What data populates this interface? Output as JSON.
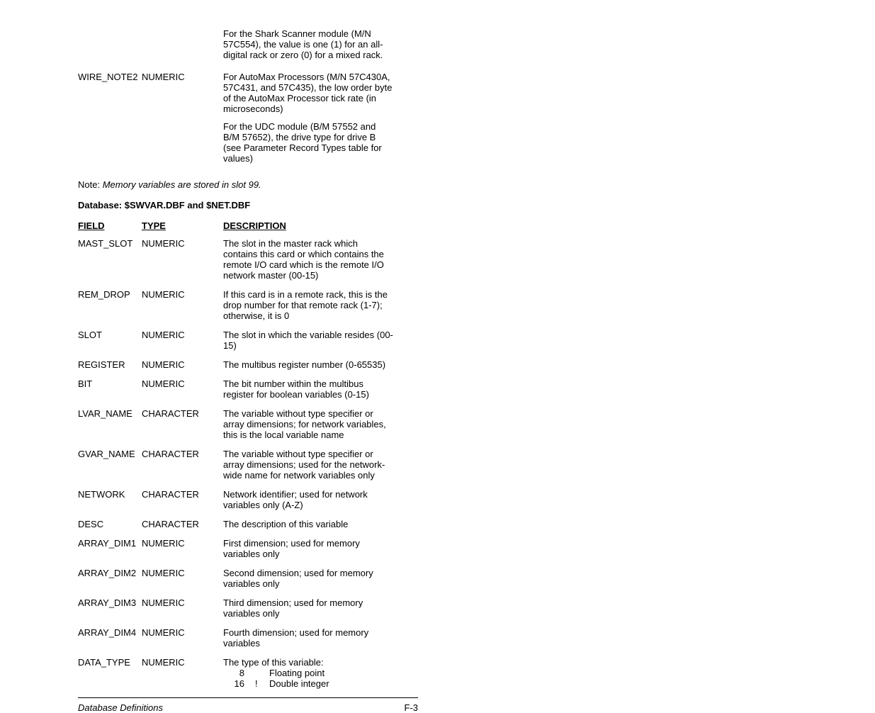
{
  "top": {
    "shark_note": "For the Shark Scanner module (M/N 57C554), the value is one (1) for an all-digital rack or zero (0) for a mixed rack.",
    "wire_note2_field": "WIRE_NOTE2",
    "wire_note2_type": "NUMERIC",
    "wire_note2_desc1": "For AutoMax Processors (M/N 57C430A, 57C431, and 57C435), the low order byte of the AutoMax Processor tick rate (in microseconds)",
    "wire_note2_desc2": "For the UDC module (B/M 57552 and B/M 57652), the drive type for drive B (see Parameter Record Types table for values)",
    "note_prefix": "Note: ",
    "note_text": "Memory variables are stored in slot 99."
  },
  "db_heading": "Database: $SWVAR.DBF and $NET.DBF",
  "headers": {
    "field": "FIELD",
    "type": "TYPE",
    "desc": "DESCRIPTION"
  },
  "rows": [
    {
      "field": "MAST_SLOT",
      "type": "NUMERIC",
      "desc": "The slot in the master rack which contains this card or which contains the remote I/O card which is the remote I/O network master (00-15)"
    },
    {
      "field": "REM_DROP",
      "type": "NUMERIC",
      "desc": "If this card is in a remote rack, this is the drop number for that remote rack (1-7); otherwise, it is 0"
    },
    {
      "field": "SLOT",
      "type": "NUMERIC",
      "desc": "The slot in which the variable resides (00-15)"
    },
    {
      "field": "REGISTER",
      "type": "NUMERIC",
      "desc": "The multibus register number (0-65535)"
    },
    {
      "field": "BIT",
      "type": "NUMERIC",
      "desc": "The bit number within the multibus register for boolean variables (0-15)"
    },
    {
      "field": "LVAR_NAME",
      "type": "CHARACTER",
      "desc": "The variable without type specifier or array dimensions; for network variables, this is the local variable name"
    },
    {
      "field": "GVAR_NAME",
      "type": "CHARACTER",
      "desc": "The variable without type specifier or array dimensions; used for the network-wide name for network variables only"
    },
    {
      "field": "NETWORK",
      "type": "CHARACTER",
      "desc": "Network identifier; used for network variables only (A-Z)"
    },
    {
      "field": "DESC",
      "type": "CHARACTER",
      "desc": "The description of this variable"
    },
    {
      "field": "ARRAY_DIM1",
      "type": "NUMERIC",
      "desc": "First dimension; used for memory variables only"
    },
    {
      "field": "ARRAY_DIM2",
      "type": "NUMERIC",
      "desc": "Second dimension; used for memory variables only"
    },
    {
      "field": "ARRAY_DIM3",
      "type": "NUMERIC",
      "desc": "Third dimension; used for memory variables only"
    },
    {
      "field": "ARRAY_DIM4",
      "type": "NUMERIC",
      "desc": "Fourth dimension; used for memory variables"
    }
  ],
  "data_type": {
    "field": "DATA_TYPE",
    "type": "NUMERIC",
    "intro": "The type of this variable:",
    "lines": [
      {
        "code": "8",
        "sym": "",
        "label": "Floating point"
      },
      {
        "code": "16",
        "sym": "!",
        "label": "Double integer"
      }
    ]
  },
  "footer": {
    "left": "Database Definitions",
    "right": "F-3"
  }
}
